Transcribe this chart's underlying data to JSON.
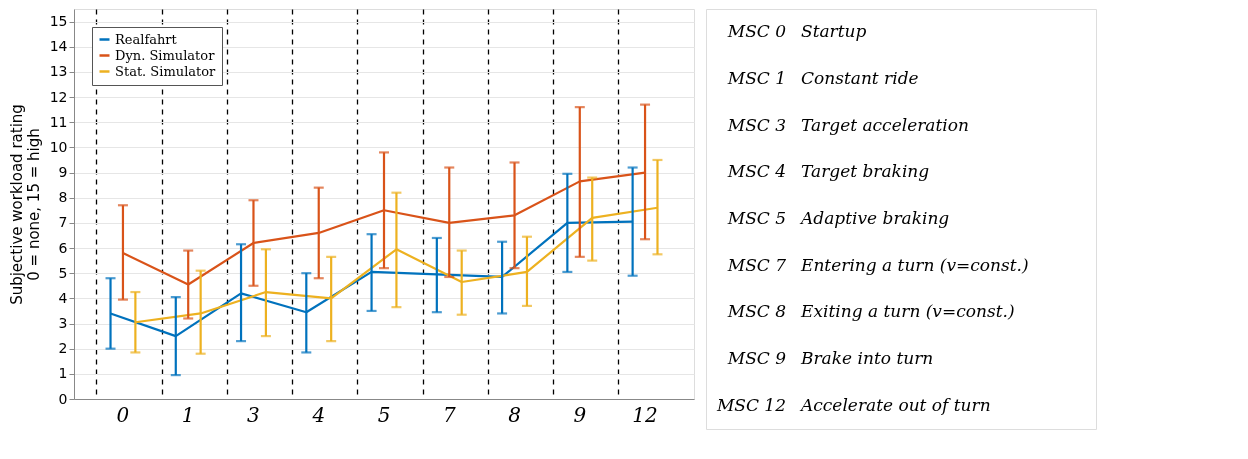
{
  "chart_data": {
    "type": "line",
    "ylabel": "Subjective workload rating\n0 = none, 15 = high",
    "categories": [
      "0",
      "1",
      "3",
      "4",
      "5",
      "7",
      "8",
      "9",
      "12"
    ],
    "series": [
      {
        "name": "Realfahrt",
        "color": "#0072bd",
        "values": [
          3.4,
          2.5,
          4.2,
          3.45,
          5.05,
          4.95,
          4.85,
          7.0,
          7.05
        ],
        "errors": [
          [
            2.0,
            4.8
          ],
          [
            0.95,
            4.05
          ],
          [
            2.3,
            6.15
          ],
          [
            1.85,
            5.0
          ],
          [
            3.5,
            6.55
          ],
          [
            3.45,
            6.4
          ],
          [
            3.4,
            6.25
          ],
          [
            5.05,
            8.95
          ],
          [
            4.9,
            9.2
          ]
        ]
      },
      {
        "name": "Dyn. Simulator",
        "color": "#d95319",
        "values": [
          5.8,
          4.55,
          6.2,
          6.6,
          7.5,
          7.0,
          7.3,
          8.65,
          9.0
        ],
        "errors": [
          [
            3.95,
            7.7
          ],
          [
            3.2,
            5.9
          ],
          [
            4.5,
            7.9
          ],
          [
            4.8,
            8.4
          ],
          [
            5.2,
            9.8
          ],
          [
            4.85,
            9.2
          ],
          [
            5.2,
            9.4
          ],
          [
            5.65,
            11.6
          ],
          [
            6.35,
            11.7
          ]
        ]
      },
      {
        "name": "Stat. Simulator",
        "color": "#edb120",
        "values": [
          3.05,
          3.4,
          4.25,
          4.0,
          5.95,
          4.65,
          5.05,
          7.2,
          7.6
        ],
        "errors": [
          [
            1.85,
            4.25
          ],
          [
            1.8,
            5.1
          ],
          [
            2.5,
            5.95
          ],
          [
            2.3,
            5.65
          ],
          [
            3.65,
            8.2
          ],
          [
            3.35,
            5.9
          ],
          [
            3.7,
            6.45
          ],
          [
            5.5,
            8.8
          ],
          [
            5.75,
            9.5
          ]
        ]
      }
    ],
    "ylim": [
      0,
      15.5
    ],
    "yticks": [
      0,
      1,
      2,
      3,
      4,
      5,
      6,
      7,
      8,
      9,
      10,
      11,
      12,
      13,
      14,
      15
    ],
    "grid": true,
    "legend": "top left",
    "marker": "none",
    "line_style": "solid",
    "annotations": [
      "MSC 0   Startup",
      "MSC 1   Constant ride",
      "MSC 3   Target acceleration",
      "MSC 4   Target braking",
      "MSC 5   Adaptive braking",
      "MSC 7   Entering a turn (v=const.)",
      "MSC 8   Exiting a turn (v=const.)",
      "MSC 9   Brake into turn",
      "MSC 12   Accelerate out of turn"
    ]
  }
}
